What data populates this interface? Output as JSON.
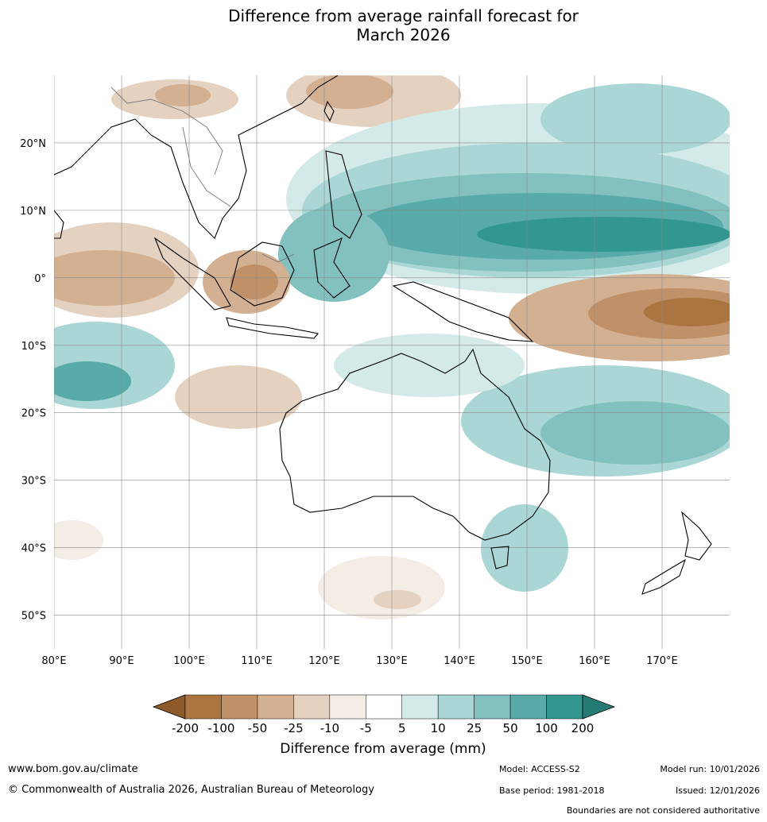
{
  "title": {
    "line1": "Difference from average rainfall forecast for",
    "line2": "March 2026"
  },
  "map": {
    "lon_range": [
      80,
      180
    ],
    "lat_range": [
      -55,
      30
    ],
    "lon_ticks": [
      {
        "value": 80,
        "label": "80°E"
      },
      {
        "value": 90,
        "label": "90°E"
      },
      {
        "value": 100,
        "label": "100°E"
      },
      {
        "value": 110,
        "label": "110°E"
      },
      {
        "value": 120,
        "label": "120°E"
      },
      {
        "value": 130,
        "label": "130°E"
      },
      {
        "value": 140,
        "label": "140°E"
      },
      {
        "value": 150,
        "label": "150°E"
      },
      {
        "value": 160,
        "label": "160°E"
      },
      {
        "value": 170,
        "label": "170°E"
      }
    ],
    "lat_ticks": [
      {
        "value": 20,
        "label": "20°N"
      },
      {
        "value": 10,
        "label": "10°N"
      },
      {
        "value": 0,
        "label": "0°"
      },
      {
        "value": -10,
        "label": "10°S"
      },
      {
        "value": -20,
        "label": "20°S"
      },
      {
        "value": -30,
        "label": "30°S"
      },
      {
        "value": -40,
        "label": "40°S"
      },
      {
        "value": -50,
        "label": "50°S"
      }
    ]
  },
  "legend": {
    "title": "Difference from average (mm)",
    "tick_labels": [
      "-200",
      "-100",
      "-50",
      "-25",
      "-10",
      "-5",
      "5",
      "10",
      "25",
      "50",
      "100",
      "200"
    ],
    "colors": [
      "#8e5a2a",
      "#ab7541",
      "#c09068",
      "#d3b092",
      "#e5d1bf",
      "#f3ede6",
      "#ffffff",
      "#d4eae8",
      "#aad7d5",
      "#82c1bf",
      "#58aba8",
      "#33978f",
      "#267a74"
    ]
  },
  "footer": {
    "website": "www.bom.gov.au/climate",
    "copyright": "© Commonwealth of Australia 2026, Australian Bureau of Meteorology",
    "model": "Model: ACCESS-S2",
    "base_period": "Base period: 1981-2018",
    "model_run": "Model run: 10/01/2026",
    "issued": "Issued: 12/01/2026",
    "disclaimer": "Boundaries are not considered authoritative"
  }
}
